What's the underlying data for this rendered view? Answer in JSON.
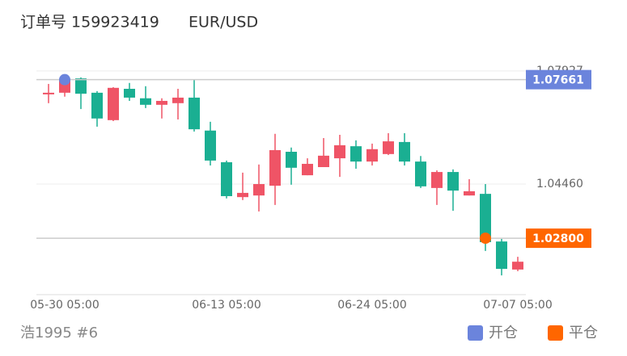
{
  "header": {
    "order": "订单号 159923419",
    "symbol": "EUR/USD"
  },
  "chart_data": {
    "type": "candlestick",
    "categories": [
      null,
      "05-30 05:00",
      null,
      null,
      null,
      null,
      null,
      null,
      null,
      null,
      null,
      "06-13 05:00",
      null,
      null,
      null,
      null,
      null,
      null,
      null,
      null,
      "06-24 05:00",
      null,
      null,
      null,
      null,
      null,
      null,
      null,
      null,
      "07-07 05:00"
    ],
    "open": [
      1.0721,
      1.0726,
      1.077,
      1.0726,
      1.0642,
      1.0738,
      1.0709,
      1.0689,
      1.0694,
      1.0711,
      1.061,
      1.0513,
      1.0406,
      1.0411,
      1.0441,
      1.0545,
      1.0473,
      1.0498,
      1.0525,
      1.0562,
      1.0515,
      1.0538,
      1.0575,
      1.0515,
      1.0434,
      1.0483,
      1.0411,
      1.0416,
      1.027,
      1.0184
    ],
    "high": [
      1.0753,
      1.0775,
      1.0773,
      1.0731,
      1.0743,
      1.0756,
      1.0746,
      1.0709,
      1.0738,
      1.0766,
      1.0637,
      1.0518,
      1.0481,
      1.0506,
      1.06,
      1.0558,
      1.0525,
      1.0587,
      1.0597,
      1.058,
      1.057,
      1.0602,
      1.0602,
      1.0532,
      1.0488,
      1.0491,
      1.0461,
      1.0446,
      1.0278,
      1.0223
    ],
    "low": [
      1.0694,
      1.0714,
      1.0676,
      1.0622,
      1.0639,
      1.0701,
      1.0679,
      1.0647,
      1.0644,
      1.0607,
      1.0503,
      1.0402,
      1.0397,
      1.0362,
      1.0382,
      1.0444,
      1.0473,
      1.0498,
      1.0468,
      1.0493,
      1.0503,
      1.0535,
      1.0503,
      1.0434,
      1.0382,
      1.0364,
      1.0411,
      1.0241,
      1.0166,
      1.0179
    ],
    "close": [
      1.0726,
      1.0768,
      1.0723,
      1.0647,
      1.0741,
      1.0711,
      1.0689,
      1.0701,
      1.0711,
      1.0614,
      1.0518,
      1.0409,
      1.0419,
      1.0446,
      1.055,
      1.0496,
      1.0508,
      1.0533,
      1.0565,
      1.0515,
      1.0553,
      1.0577,
      1.0515,
      1.0439,
      1.0483,
      1.0426,
      1.0424,
      1.0268,
      1.0186,
      1.0208
    ],
    "up_color": "#ef5466",
    "down_color": "#1aaf92",
    "ylim": [
      1.0107,
      1.0842
    ],
    "yticks": [
      1.07927,
      {
        "value": 1.0446,
        "label": "1.04460"
      }
    ],
    "grid": true,
    "markers": [
      {
        "name": "开仓",
        "color": "#6b84dc",
        "index": 1,
        "value": 1.07661,
        "label": "1.07661"
      },
      {
        "name": "平仓",
        "color": "#ff6600",
        "index": 27,
        "value": 1.028,
        "label": "1.02800"
      }
    ]
  },
  "footer": {
    "account": "浩1995 #6"
  }
}
